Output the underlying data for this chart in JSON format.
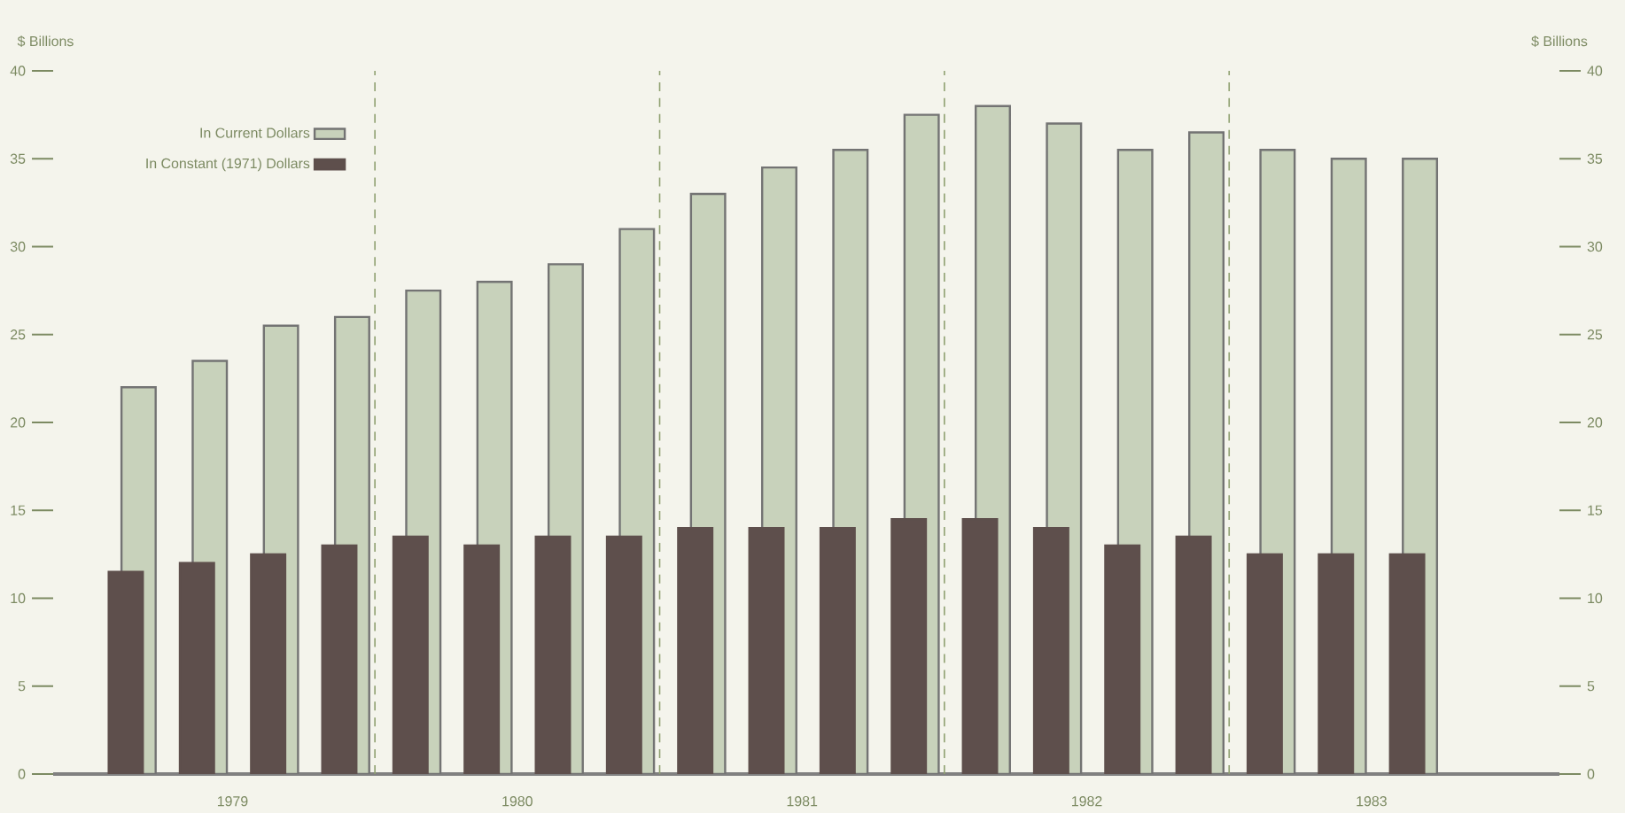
{
  "chart_data": {
    "type": "bar",
    "ylabel": "$ Billions",
    "y2label": "$ Billions",
    "x": [
      1979.125,
      1979.375,
      1979.625,
      1979.875,
      1980.125,
      1980.375,
      1980.625,
      1980.875,
      1981.125,
      1981.375,
      1981.625,
      1981.875,
      1982.125,
      1982.375,
      1982.625,
      1982.875,
      1983.125,
      1983.375,
      1983.625
    ],
    "series": [
      {
        "name": "In Current Dollars",
        "color": "#c8d2bb",
        "values": [
          22,
          23.5,
          25.5,
          26,
          27.5,
          28,
          29,
          31,
          33,
          34.5,
          35.5,
          37.5,
          38,
          37,
          35.5,
          36.5,
          35.5,
          35,
          35
        ]
      },
      {
        "name": "In Constant (1971) Dollars",
        "color": "#5e4f4c",
        "values": [
          11.5,
          12,
          12.5,
          13,
          13.5,
          13,
          13.5,
          13.5,
          14,
          14,
          14,
          14.5,
          14.5,
          14,
          13,
          13.5,
          12.5,
          12.5,
          12.5
        ]
      }
    ],
    "xlim": [
      1978.87,
      1984.16
    ],
    "xticks": [
      {
        "value": 1979.5,
        "label": "1979"
      },
      {
        "value": 1980.5,
        "label": "1980"
      },
      {
        "value": 1981.5,
        "label": "1981"
      },
      {
        "value": 1982.5,
        "label": "1982"
      },
      {
        "value": 1983.5,
        "label": "1983"
      }
    ],
    "ylim": [
      0,
      40
    ],
    "yticks": [
      0,
      5,
      10,
      15,
      20,
      25,
      30,
      35,
      40
    ],
    "y2lim": [
      0,
      40
    ],
    "y2ticks": [
      0,
      5,
      10,
      15,
      20,
      25,
      30,
      35,
      40
    ],
    "ref_lines": [
      {
        "axis": "x",
        "value": 1980,
        "color": "#8fa070",
        "line_style": "dashed"
      },
      {
        "axis": "x",
        "value": 1981,
        "color": "#8fa070",
        "line_style": "dashed"
      },
      {
        "axis": "x",
        "value": 1982,
        "color": "#8fa070",
        "line_style": "dashed"
      },
      {
        "axis": "x",
        "value": 1983,
        "color": "#8fa070",
        "line_style": "dashed"
      }
    ],
    "legend": "top left"
  }
}
